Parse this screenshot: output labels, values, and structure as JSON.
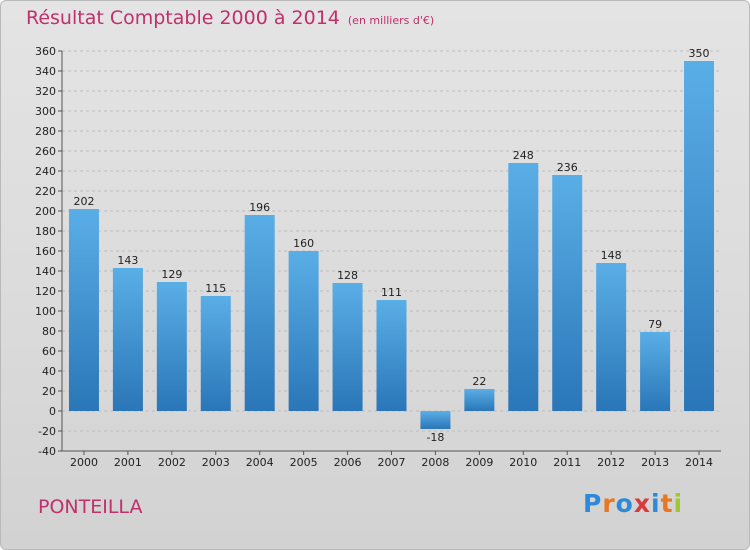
{
  "chart_data": {
    "type": "bar",
    "title": "Résultat Comptable 2000 à 2014",
    "subtitle": "(en milliers d'€)",
    "categories": [
      "2000",
      "2001",
      "2002",
      "2003",
      "2004",
      "2005",
      "2006",
      "2007",
      "2008",
      "2009",
      "2010",
      "2011",
      "2012",
      "2013",
      "2014"
    ],
    "values": [
      202,
      143,
      129,
      115,
      196,
      160,
      128,
      111,
      -18,
      22,
      248,
      236,
      148,
      79,
      350
    ],
    "ylim": [
      -40,
      360
    ],
    "ytick_step": 20,
    "grid": "horizontal dashed",
    "xlabel": "",
    "ylabel": "",
    "colors": {
      "bar_top": "#5aaee6",
      "bar_bottom": "#2a76b8",
      "grid": "#bdbdbd",
      "axis": "#555555"
    }
  },
  "footer": {
    "city": "PONTEILLA",
    "logo_text": "Proxiti",
    "logo_colors": [
      "#2e8ad8",
      "#e87722",
      "#2e8ad8",
      "#d93a3a",
      "#2e8ad8",
      "#e87722",
      "#9ec832"
    ]
  }
}
